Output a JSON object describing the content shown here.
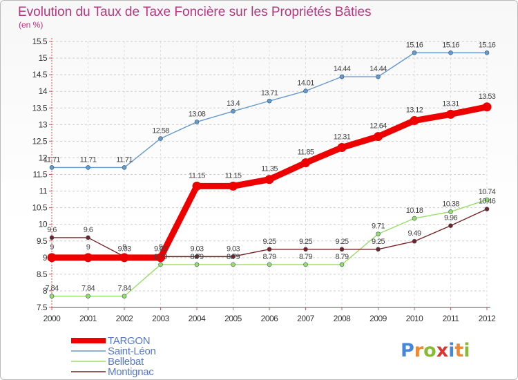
{
  "chart_data": {
    "type": "line",
    "title": "Evolution du Taux de Taxe Foncière sur les Propriétés Bâties",
    "subtitle": "(en %)",
    "xlabel": "",
    "ylabel": "",
    "x": [
      "2000",
      "2001",
      "2002",
      "2003",
      "2004",
      "2005",
      "2006",
      "2007",
      "2008",
      "2009",
      "2010",
      "2011",
      "2012"
    ],
    "ylim": [
      7.5,
      15.5
    ],
    "yticks": [
      "7.5",
      "8",
      "8.5",
      "9",
      "9.5",
      "10",
      "10.5",
      "11",
      "11.5",
      "12",
      "12.5",
      "13",
      "13.5",
      "14",
      "14.5",
      "15",
      "15.5"
    ],
    "grid": "horizontal-dashed",
    "legend_position": "bottom-left",
    "series": [
      {
        "name": "TARGON",
        "color": "#ee0000",
        "values": [
          9,
          9,
          9,
          9,
          11.15,
          11.15,
          11.35,
          11.85,
          12.31,
          12.64,
          13.12,
          13.31,
          13.53
        ],
        "labels": [
          "9",
          "9",
          "9",
          "9",
          "11.15",
          "11.15",
          "11.35",
          "11.85",
          "12.31",
          "12.64",
          "13.12",
          "13.31",
          "13.53"
        ]
      },
      {
        "name": "Saint-Léon",
        "color": "#6699cc",
        "values": [
          11.71,
          11.71,
          11.71,
          12.58,
          13.08,
          13.4,
          13.71,
          14.01,
          14.44,
          14.44,
          15.16,
          15.16,
          15.16
        ],
        "labels": [
          "11.71",
          "11.71",
          "11.71",
          "12.58",
          "13.08",
          "13.4",
          "13.71",
          "14.01",
          "14.44",
          "14.44",
          "15.16",
          "15.16",
          "15.16"
        ]
      },
      {
        "name": "Bellebat",
        "color": "#99dd66",
        "values": [
          7.84,
          7.84,
          7.84,
          8.79,
          8.79,
          8.79,
          8.79,
          8.79,
          8.79,
          9.71,
          10.18,
          10.38,
          10.74
        ],
        "labels": [
          "7.84",
          "7.84",
          "7.84",
          "8.79",
          "8.79",
          "8.79",
          "8.79",
          "8.79",
          "8.79",
          "9.71",
          "10.18",
          "10.38",
          "10.74"
        ]
      },
      {
        "name": "Montignac",
        "color": "#772222",
        "values": [
          9.6,
          9.6,
          9.03,
          9.03,
          9.03,
          9.03,
          9.25,
          9.25,
          9.25,
          9.25,
          9.49,
          9.96,
          10.46
        ],
        "labels": [
          "9.6",
          "9.6",
          "9.03",
          "9.03",
          "9.03",
          "9.03",
          "9.25",
          "9.25",
          "9.25",
          "9.25",
          "9.49",
          "9.96",
          "10.46"
        ]
      }
    ]
  },
  "logo": {
    "text": "Proxiti",
    "colors": [
      "#4488dd",
      "#ee8833",
      "#88bb33",
      "#dd3333",
      "#4488dd",
      "#ee8833",
      "#88bb33"
    ]
  }
}
